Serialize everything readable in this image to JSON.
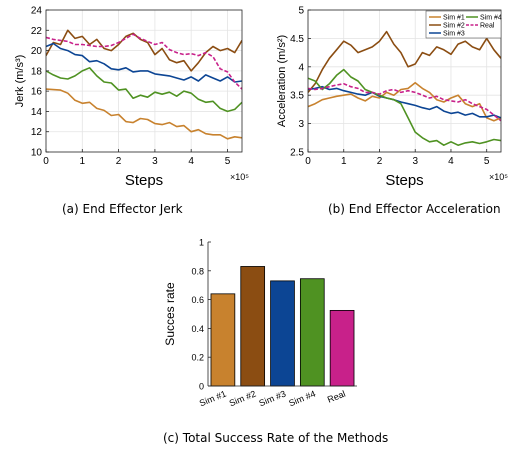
{
  "colors": {
    "sim1": "#c8822e",
    "sim2": "#8b4d12",
    "sim3": "#0c4594",
    "sim4": "#4f9222",
    "real": "#c8218a"
  },
  "chart_data": [
    {
      "type": "line",
      "caption": "(a) End Effector Jerk",
      "xlabel": "Steps",
      "xscale_label": "×10⁵",
      "ylabel": "Jerk (m/s³)",
      "xlim": [
        0,
        5.4
      ],
      "ylim": [
        10,
        24
      ],
      "xticks": [
        0,
        1,
        2,
        3,
        4,
        5
      ],
      "yticks": [
        10,
        12,
        14,
        16,
        18,
        20,
        22,
        24
      ],
      "grid": true,
      "series": [
        {
          "name": "Sim #1",
          "key": "sim1",
          "dash": false,
          "x": [
            0,
            0.4,
            0.6,
            0.8,
            1.0,
            1.2,
            1.4,
            1.6,
            1.8,
            2.0,
            2.2,
            2.4,
            2.6,
            2.8,
            3.0,
            3.2,
            3.4,
            3.6,
            3.8,
            4.0,
            4.2,
            4.4,
            4.6,
            4.8,
            5.0,
            5.2,
            5.4
          ],
          "y": [
            16.2,
            16.1,
            15.8,
            15.1,
            14.8,
            14.9,
            14.3,
            14.1,
            13.6,
            13.7,
            13.0,
            12.9,
            13.3,
            13.2,
            12.8,
            12.7,
            12.9,
            12.5,
            12.6,
            12.0,
            12.2,
            11.8,
            11.7,
            11.7,
            11.3,
            11.5,
            11.4
          ]
        },
        {
          "name": "Sim #2",
          "key": "sim2",
          "dash": false,
          "x": [
            0,
            0.2,
            0.4,
            0.6,
            0.8,
            1.0,
            1.2,
            1.4,
            1.6,
            1.8,
            2.0,
            2.2,
            2.4,
            2.6,
            2.8,
            3.0,
            3.2,
            3.4,
            3.6,
            3.8,
            4.0,
            4.2,
            4.4,
            4.6,
            4.8,
            5.0,
            5.2,
            5.4
          ],
          "y": [
            19.5,
            20.8,
            20.6,
            22.0,
            21.2,
            21.4,
            20.6,
            21.1,
            20.2,
            20.0,
            20.6,
            21.4,
            21.7,
            21.1,
            20.8,
            19.6,
            20.2,
            19.1,
            18.8,
            19.0,
            18.0,
            18.8,
            19.8,
            20.4,
            20.0,
            20.2,
            19.8,
            21.0
          ]
        },
        {
          "name": "Sim #3",
          "key": "sim3",
          "dash": false,
          "x": [
            0,
            0.2,
            0.4,
            0.6,
            0.8,
            1.0,
            1.2,
            1.4,
            1.6,
            1.8,
            2.0,
            2.2,
            2.4,
            2.6,
            2.8,
            3.0,
            3.2,
            3.4,
            3.6,
            3.8,
            4.0,
            4.2,
            4.4,
            4.6,
            4.8,
            5.0,
            5.2,
            5.4
          ],
          "y": [
            20.4,
            20.7,
            20.2,
            20.0,
            19.6,
            19.5,
            18.9,
            19.0,
            18.7,
            18.2,
            18.1,
            18.3,
            17.9,
            18.0,
            18.0,
            17.7,
            17.6,
            17.5,
            17.3,
            17.1,
            17.4,
            17.0,
            17.6,
            17.3,
            17.0,
            17.4,
            16.9,
            17.0
          ]
        },
        {
          "name": "Sim #4",
          "key": "sim4",
          "dash": false,
          "x": [
            0,
            0.2,
            0.4,
            0.6,
            0.8,
            1.0,
            1.2,
            1.4,
            1.6,
            1.8,
            2.0,
            2.2,
            2.4,
            2.6,
            2.8,
            3.0,
            3.2,
            3.4,
            3.6,
            3.8,
            4.0,
            4.2,
            4.4,
            4.6,
            4.8,
            5.0,
            5.2,
            5.4
          ],
          "y": [
            18.0,
            17.6,
            17.3,
            17.2,
            17.5,
            18.0,
            18.3,
            17.5,
            16.9,
            16.8,
            16.1,
            16.2,
            15.3,
            15.6,
            15.4,
            15.9,
            15.7,
            15.9,
            15.5,
            16.0,
            15.8,
            15.2,
            14.9,
            15.0,
            14.3,
            14.0,
            14.2,
            14.9
          ]
        },
        {
          "name": "Real",
          "key": "real",
          "dash": true,
          "x": [
            0,
            0.2,
            0.4,
            0.6,
            0.8,
            1.0,
            1.2,
            1.4,
            1.6,
            1.8,
            2.0,
            2.2,
            2.4,
            2.6,
            2.8,
            3.0,
            3.2,
            3.4,
            3.6,
            3.8,
            4.0,
            4.2,
            4.4,
            4.6,
            4.8,
            5.0,
            5.2,
            5.4
          ],
          "y": [
            21.3,
            21.1,
            21.0,
            20.9,
            20.6,
            20.6,
            20.5,
            20.4,
            20.4,
            20.5,
            20.8,
            21.2,
            21.6,
            21.2,
            20.9,
            20.6,
            20.8,
            20.1,
            19.8,
            19.6,
            19.7,
            19.5,
            19.8,
            19.4,
            18.2,
            17.9,
            16.9,
            16.2
          ]
        }
      ]
    },
    {
      "type": "line",
      "caption": "(b) End Effector Acceleration",
      "xlabel": "Steps",
      "xscale_label": "×10⁵",
      "ylabel": "Acceleration (m/s²)",
      "xlim": [
        0,
        5.4
      ],
      "ylim": [
        2.5,
        5
      ],
      "xticks": [
        0,
        1,
        2,
        3,
        4,
        5
      ],
      "yticks": [
        2.5,
        3,
        3.5,
        4,
        4.5,
        5
      ],
      "grid": true,
      "legend": {
        "placement": "top-right",
        "columns": 2
      },
      "series": [
        {
          "name": "Sim #1",
          "key": "sim1",
          "dash": false,
          "x": [
            0,
            0.2,
            0.4,
            0.6,
            0.8,
            1.0,
            1.2,
            1.4,
            1.6,
            1.8,
            2.0,
            2.2,
            2.4,
            2.6,
            2.8,
            3.0,
            3.2,
            3.4,
            3.6,
            3.8,
            4.0,
            4.2,
            4.4,
            4.6,
            4.8,
            5.0,
            5.2,
            5.4
          ],
          "y": [
            3.3,
            3.35,
            3.42,
            3.45,
            3.48,
            3.5,
            3.52,
            3.45,
            3.4,
            3.48,
            3.45,
            3.55,
            3.5,
            3.6,
            3.62,
            3.72,
            3.62,
            3.55,
            3.42,
            3.38,
            3.45,
            3.5,
            3.35,
            3.3,
            3.35,
            3.1,
            3.05,
            3.1
          ]
        },
        {
          "name": "Sim #2",
          "key": "sim2",
          "dash": false,
          "x": [
            0,
            0.2,
            0.4,
            0.6,
            0.8,
            1.0,
            1.2,
            1.4,
            1.6,
            1.8,
            2.0,
            2.2,
            2.4,
            2.6,
            2.8,
            3.0,
            3.2,
            3.4,
            3.6,
            3.8,
            4.0,
            4.2,
            4.4,
            4.6,
            4.8,
            5.0,
            5.2,
            5.4
          ],
          "y": [
            3.55,
            3.7,
            3.95,
            4.15,
            4.3,
            4.45,
            4.38,
            4.25,
            4.3,
            4.35,
            4.45,
            4.62,
            4.4,
            4.25,
            4.0,
            4.05,
            4.25,
            4.2,
            4.35,
            4.3,
            4.22,
            4.4,
            4.45,
            4.35,
            4.3,
            4.5,
            4.3,
            4.15
          ]
        },
        {
          "name": "Sim #3",
          "key": "sim3",
          "dash": false,
          "x": [
            0,
            0.2,
            0.4,
            0.6,
            0.8,
            1.0,
            1.2,
            1.4,
            1.6,
            1.8,
            2.0,
            2.2,
            2.4,
            2.6,
            2.8,
            3.0,
            3.2,
            3.4,
            3.6,
            3.8,
            4.0,
            4.2,
            4.4,
            4.6,
            4.8,
            5.0,
            5.2,
            5.4
          ],
          "y": [
            3.6,
            3.62,
            3.65,
            3.6,
            3.62,
            3.58,
            3.55,
            3.52,
            3.5,
            3.55,
            3.48,
            3.45,
            3.42,
            3.38,
            3.35,
            3.32,
            3.28,
            3.25,
            3.3,
            3.22,
            3.18,
            3.2,
            3.15,
            3.18,
            3.12,
            3.12,
            3.15,
            3.1
          ]
        },
        {
          "name": "Sim #4",
          "key": "sim4",
          "dash": false,
          "x": [
            0,
            0.2,
            0.4,
            0.6,
            0.8,
            1.0,
            1.2,
            1.4,
            1.6,
            1.8,
            2.0,
            2.2,
            2.4,
            2.6,
            2.8,
            3.0,
            3.2,
            3.4,
            3.6,
            3.8,
            4.0,
            4.2,
            4.4,
            4.6,
            4.8,
            5.0,
            5.2,
            5.4
          ],
          "y": [
            3.8,
            3.75,
            3.6,
            3.7,
            3.85,
            3.95,
            3.82,
            3.75,
            3.6,
            3.55,
            3.5,
            3.45,
            3.42,
            3.35,
            3.1,
            2.85,
            2.75,
            2.68,
            2.7,
            2.62,
            2.68,
            2.62,
            2.66,
            2.68,
            2.65,
            2.68,
            2.72,
            2.7
          ]
        },
        {
          "name": "Real",
          "key": "real",
          "dash": true,
          "x": [
            0,
            0.2,
            0.4,
            0.6,
            0.8,
            1.0,
            1.2,
            1.4,
            1.6,
            1.8,
            2.0,
            2.2,
            2.4,
            2.6,
            2.8,
            3.0,
            3.2,
            3.4,
            3.6,
            3.8,
            4.0,
            4.2,
            4.4,
            4.6,
            4.8,
            5.0,
            5.2,
            5.4
          ],
          "y": [
            3.62,
            3.6,
            3.62,
            3.65,
            3.68,
            3.7,
            3.65,
            3.62,
            3.55,
            3.55,
            3.52,
            3.58,
            3.6,
            3.55,
            3.58,
            3.55,
            3.5,
            3.45,
            3.48,
            3.42,
            3.4,
            3.38,
            3.42,
            3.35,
            3.3,
            3.25,
            3.15,
            3.05
          ]
        }
      ]
    },
    {
      "type": "bar",
      "caption": "(c) Total Success Rate of the Methods",
      "ylabel": "Succes rate",
      "ylim": [
        0,
        1
      ],
      "yticks": [
        0,
        0.2,
        0.4,
        0.6,
        0.8,
        1
      ],
      "grid": false,
      "categories": [
        "Sim #1",
        "Sim #2",
        "Sim #3",
        "Sim #4",
        "Real"
      ],
      "keys": [
        "sim1",
        "sim2",
        "sim3",
        "sim4",
        "real"
      ],
      "values": [
        0.64,
        0.83,
        0.73,
        0.745,
        0.525
      ]
    }
  ]
}
